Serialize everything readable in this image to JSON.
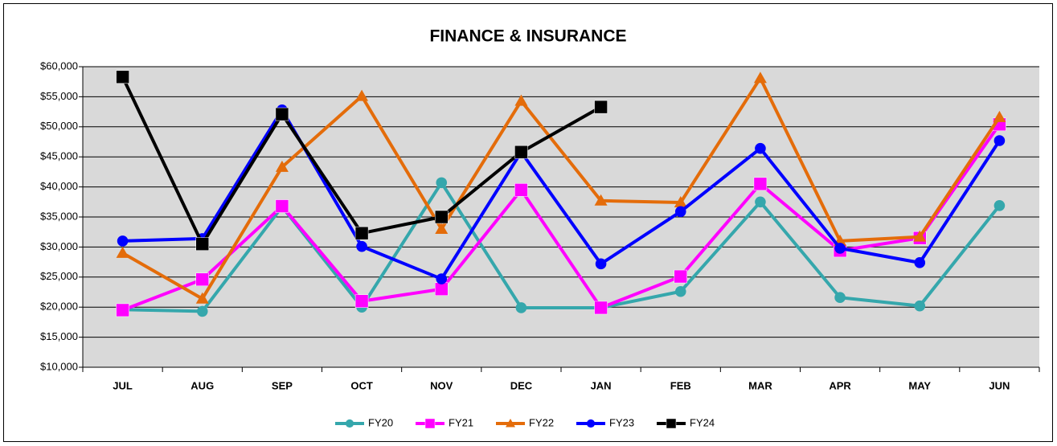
{
  "chart_data": {
    "type": "line",
    "title": "FINANCE & INSURANCE",
    "categories": [
      "JUL",
      "AUG",
      "SEP",
      "OCT",
      "NOV",
      "DEC",
      "JAN",
      "FEB",
      "MAR",
      "APR",
      "MAY",
      "JUN"
    ],
    "series": [
      {
        "name": "FY20",
        "color": "#35a7ac",
        "marker": "circle",
        "values": [
          19600,
          19300,
          36700,
          20000,
          40700,
          19900,
          19900,
          22600,
          37500,
          21600,
          20200,
          36900
        ]
      },
      {
        "name": "FY21",
        "color": "#ff00ff",
        "marker": "square",
        "values": [
          19500,
          24600,
          36800,
          21000,
          23000,
          39500,
          19900,
          25100,
          40500,
          29400,
          31500,
          50400
        ]
      },
      {
        "name": "FY22",
        "color": "#e46c0a",
        "marker": "triangle",
        "values": [
          29000,
          21400,
          43300,
          55100,
          33000,
          54300,
          37700,
          37400,
          58100,
          31000,
          31700,
          51600
        ]
      },
      {
        "name": "FY23",
        "color": "#0000ff",
        "marker": "circle",
        "values": [
          31000,
          31400,
          52800,
          30100,
          24700,
          45800,
          27200,
          35900,
          46400,
          29800,
          27400,
          47700
        ]
      },
      {
        "name": "FY24",
        "color": "#000000",
        "marker": "square",
        "values": [
          58300,
          30500,
          52100,
          32300,
          35000,
          45800,
          53300,
          null,
          null,
          null,
          null,
          null
        ]
      }
    ],
    "ylim": [
      10000,
      60000
    ],
    "yticks": [
      {
        "value": 10000,
        "label": "$10,000"
      },
      {
        "value": 15000,
        "label": "$15,000"
      },
      {
        "value": 20000,
        "label": "$20,000"
      },
      {
        "value": 25000,
        "label": "$25,000"
      },
      {
        "value": 30000,
        "label": "$30,000"
      },
      {
        "value": 35000,
        "label": "$35,000"
      },
      {
        "value": 40000,
        "label": "$40,000"
      },
      {
        "value": 45000,
        "label": "$45,000"
      },
      {
        "value": 50000,
        "label": "$50,000"
      },
      {
        "value": 55000,
        "label": "$55,000"
      },
      {
        "value": 60000,
        "label": "$60,000"
      }
    ],
    "grid": true,
    "legend": "bottom",
    "plot_background": "#d9d9d9"
  }
}
